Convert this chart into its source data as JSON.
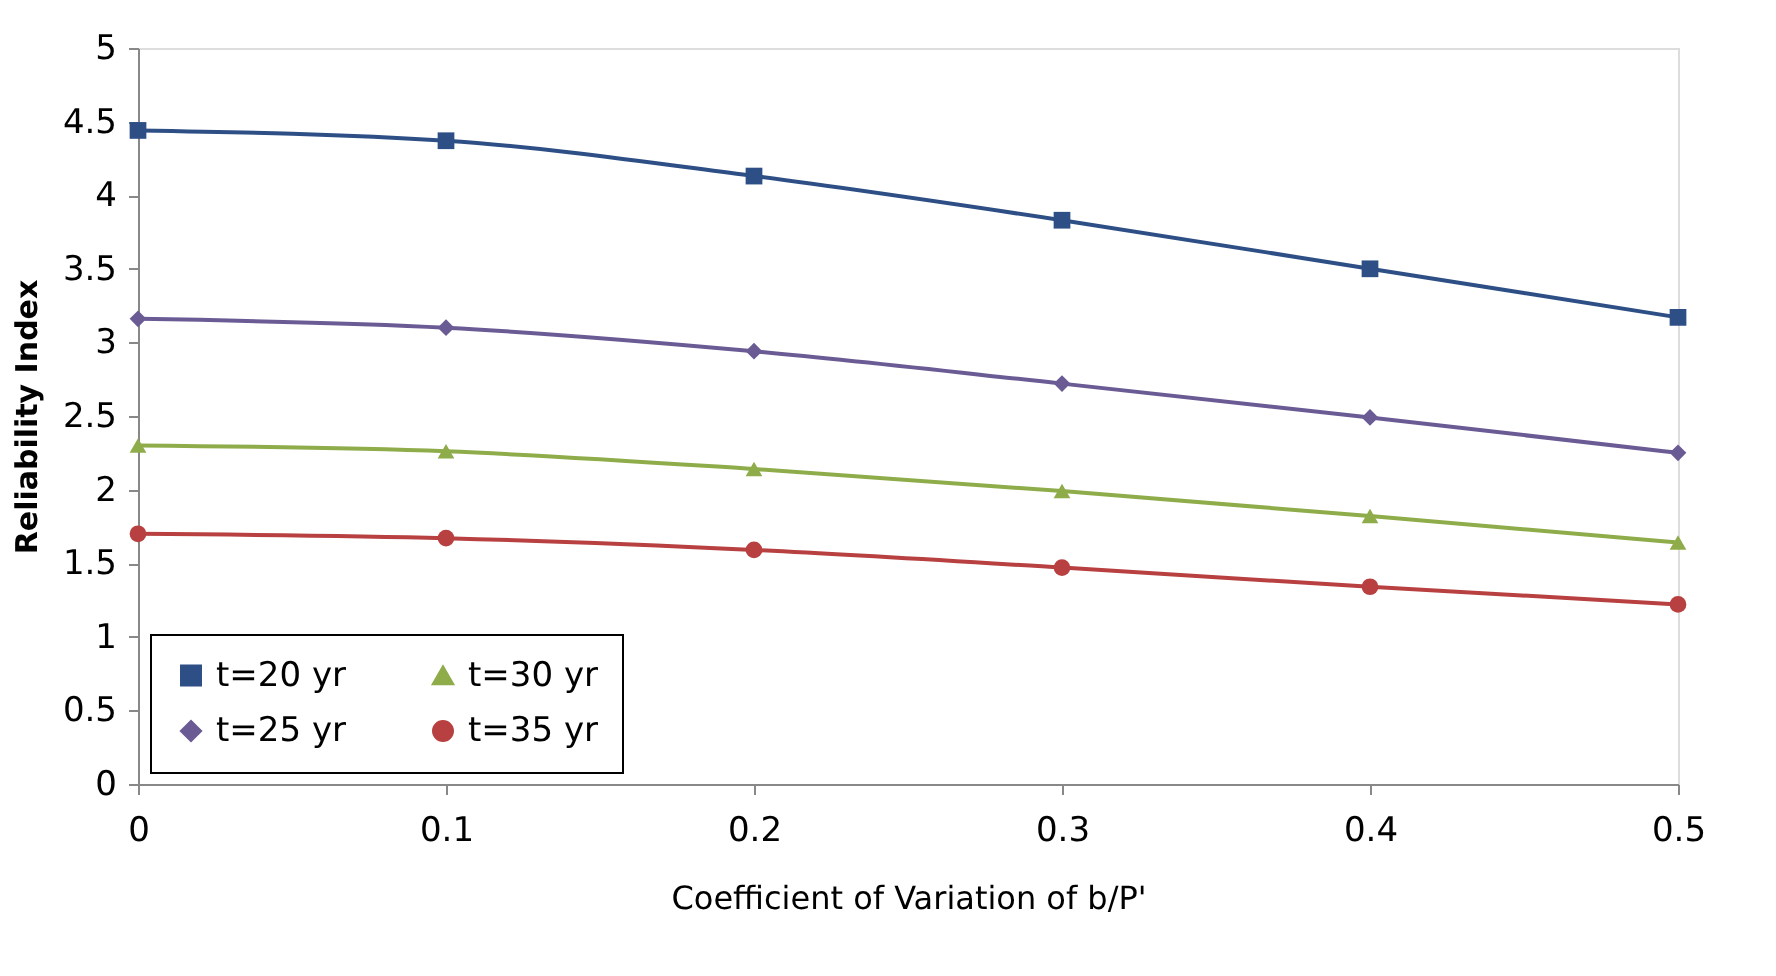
{
  "chart_data": {
    "type": "line",
    "xlabel": "Coefficient of Variation of b/P'",
    "ylabel": "Reliability Index",
    "x": [
      0,
      0.1,
      0.2,
      0.3,
      0.4,
      0.5
    ],
    "xlim": [
      0,
      0.5
    ],
    "xticks": [
      0,
      0.1,
      0.2,
      0.3,
      0.4,
      0.5
    ],
    "ylim": [
      0,
      5
    ],
    "yticks": [
      0,
      0.5,
      1,
      1.5,
      2,
      2.5,
      3,
      3.5,
      4,
      4.5,
      5
    ],
    "grid": false,
    "legend": "bottom left",
    "series": [
      {
        "name": "t=20 yr",
        "color": "#2e4f86",
        "marker": "square",
        "values": [
          4.44,
          4.37,
          4.13,
          3.83,
          3.5,
          3.17
        ]
      },
      {
        "name": "t=25 yr",
        "color": "#6b5b95",
        "marker": "diamond",
        "values": [
          3.16,
          3.1,
          2.94,
          2.72,
          2.49,
          2.25
        ]
      },
      {
        "name": "t=30 yr",
        "color": "#8fac4a",
        "marker": "triangle",
        "values": [
          2.3,
          2.26,
          2.14,
          1.99,
          1.82,
          1.64
        ]
      },
      {
        "name": "t=35 yr",
        "color": "#b84040",
        "marker": "circle",
        "values": [
          1.7,
          1.67,
          1.59,
          1.47,
          1.34,
          1.22
        ]
      }
    ]
  }
}
